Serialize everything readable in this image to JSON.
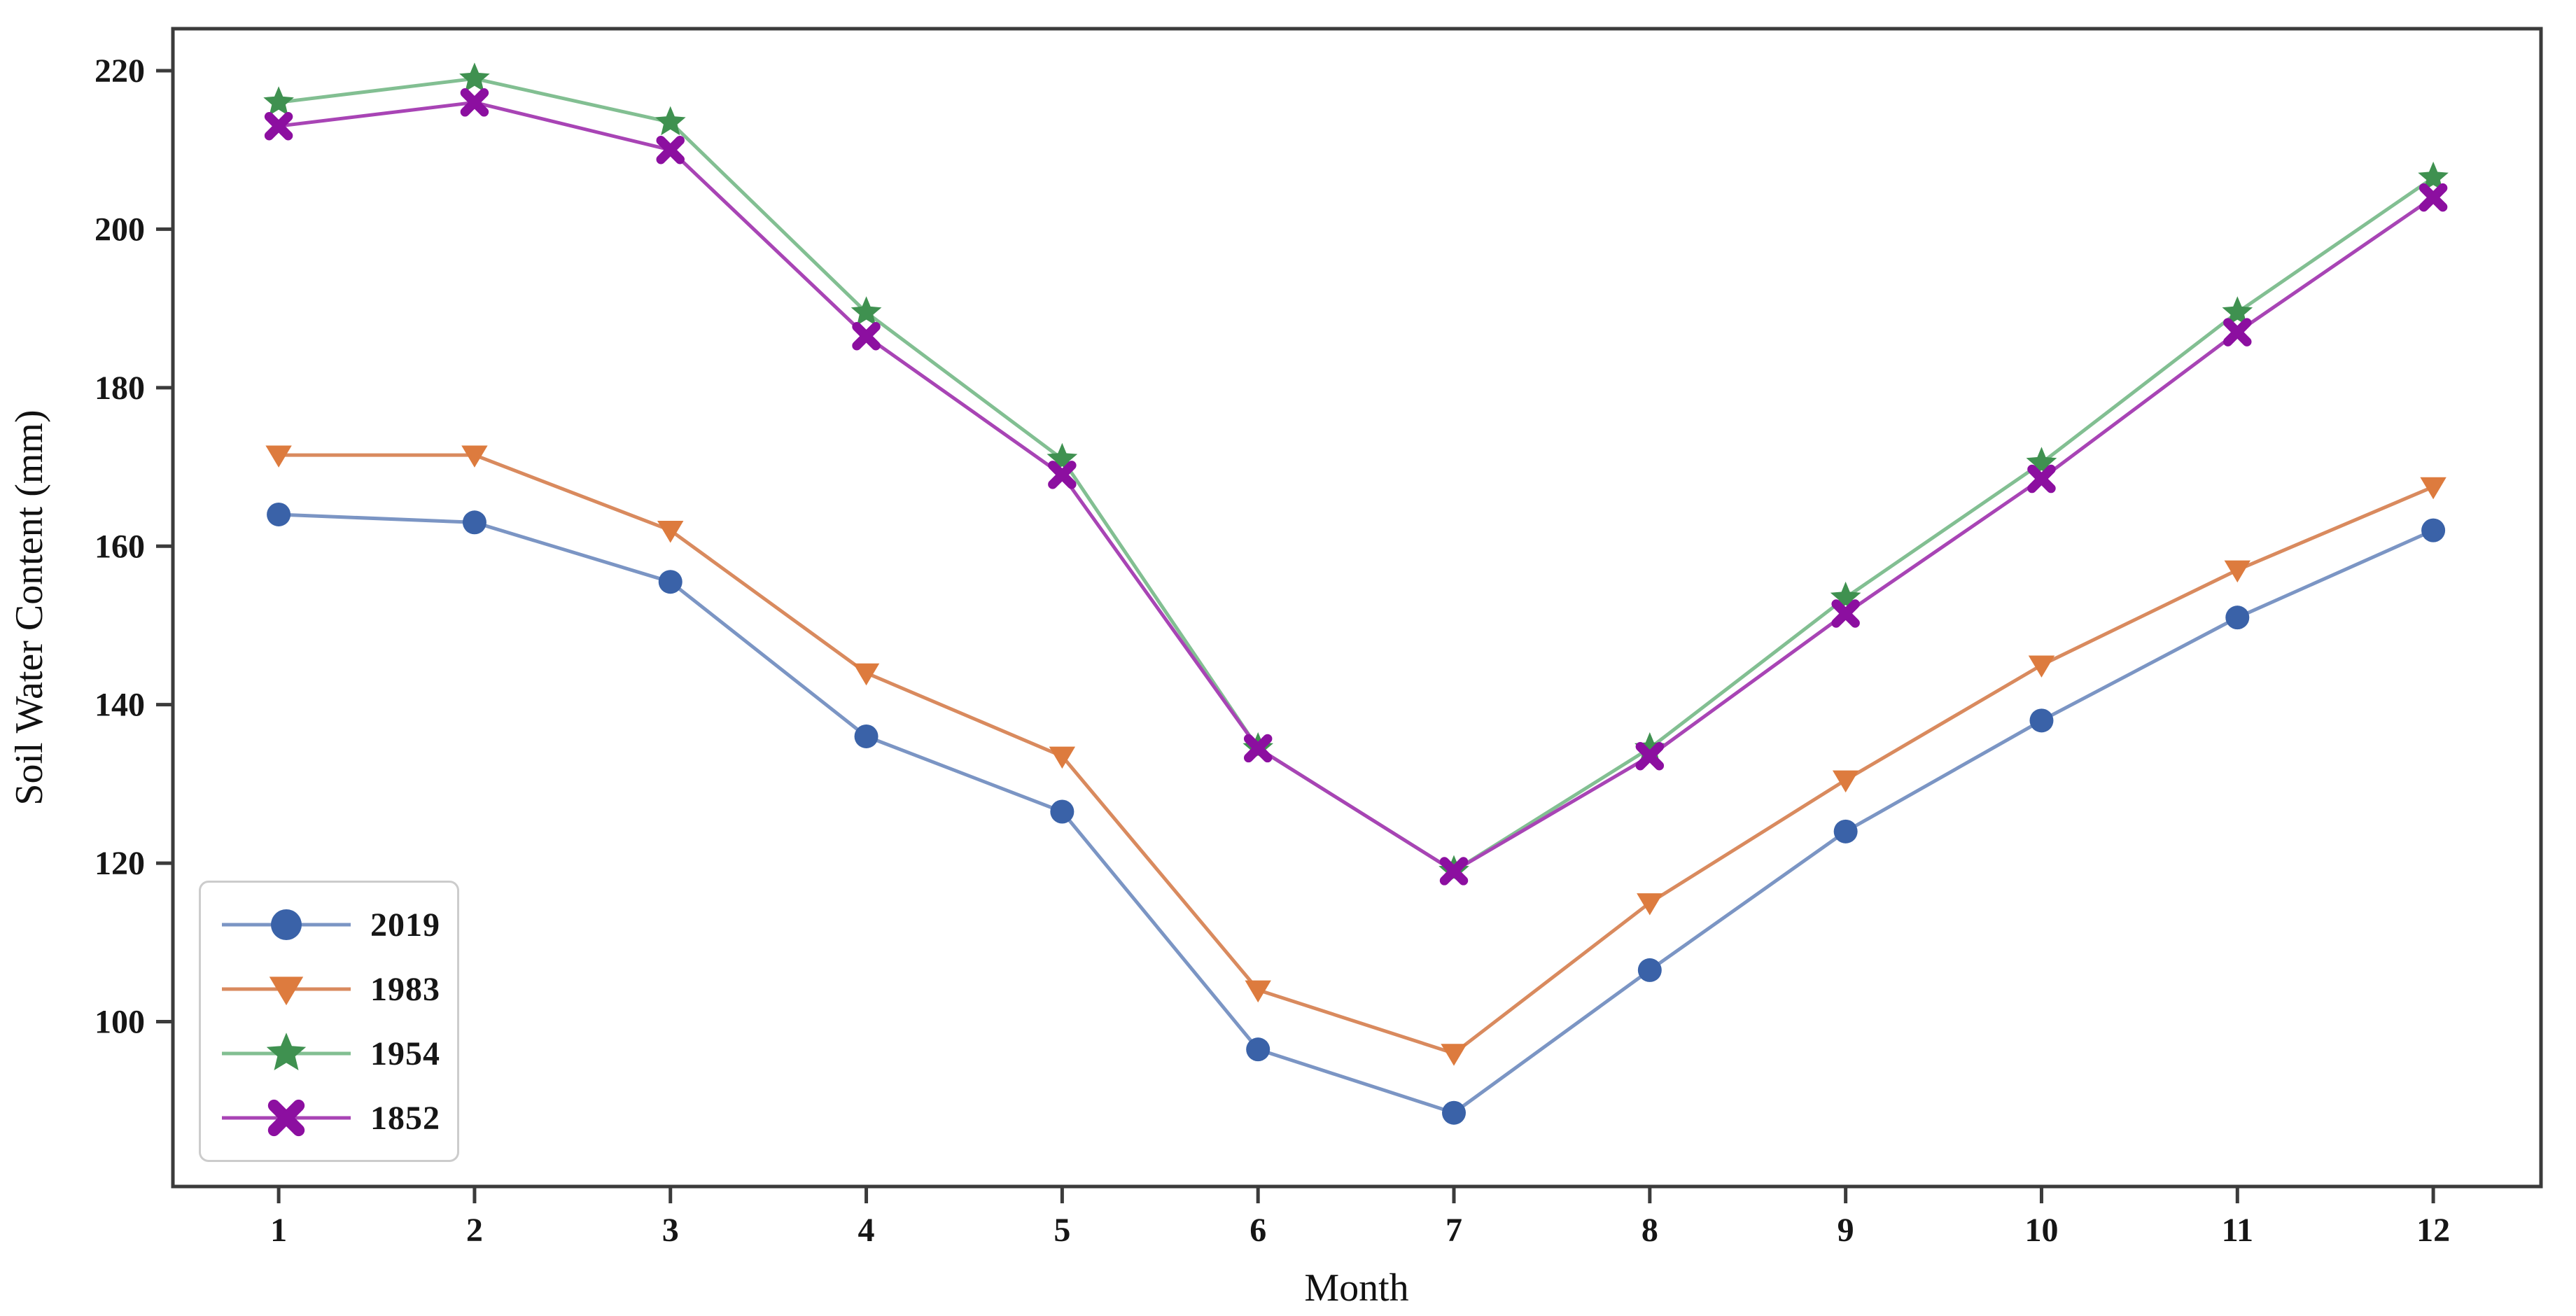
{
  "chart_data": {
    "type": "line",
    "title": "",
    "xlabel": "Month",
    "ylabel": "Soil Water Content (mm)",
    "x": [
      1,
      2,
      3,
      4,
      5,
      6,
      7,
      8,
      9,
      10,
      11,
      12
    ],
    "xticks": [
      1,
      2,
      3,
      4,
      5,
      6,
      7,
      8,
      9,
      10,
      11,
      12
    ],
    "yticks": [
      100,
      120,
      140,
      160,
      180,
      200,
      220
    ],
    "ylim": [
      79.2,
      225.3
    ],
    "xlim": [
      0.46,
      12.55
    ],
    "grid": false,
    "legend_position": "lower left",
    "series": [
      {
        "name": "2019",
        "marker": "circle",
        "marker_color": "#3a62a8",
        "line_color": "#7b95c4",
        "values": [
          164,
          163,
          155.5,
          136,
          126.5,
          96.5,
          88.5,
          106.5,
          124,
          138,
          151,
          162
        ]
      },
      {
        "name": "1983",
        "marker": "triangle-down",
        "marker_color": "#dd7b3e",
        "line_color": "#d98a5e",
        "values": [
          171.5,
          171.5,
          162,
          144,
          133.5,
          104,
          96,
          115,
          130.5,
          145,
          157,
          167.5
        ]
      },
      {
        "name": "1954",
        "marker": "star",
        "marker_color": "#3f9150",
        "line_color": "#82bf92",
        "values": [
          216,
          219,
          213.5,
          189.5,
          171,
          134.5,
          119,
          134.5,
          153.5,
          170.5,
          189.5,
          206.5
        ]
      },
      {
        "name": "1852",
        "marker": "x",
        "marker_color": "#8c0fa0",
        "line_color": "#a844b5",
        "values": [
          213,
          216,
          210,
          186.5,
          169,
          134.5,
          119,
          133.5,
          151.5,
          168.5,
          187,
          204
        ]
      }
    ],
    "spine_color": "#3b3b3b",
    "tick_color": "#3b3b3b",
    "text_color": "#161616"
  }
}
